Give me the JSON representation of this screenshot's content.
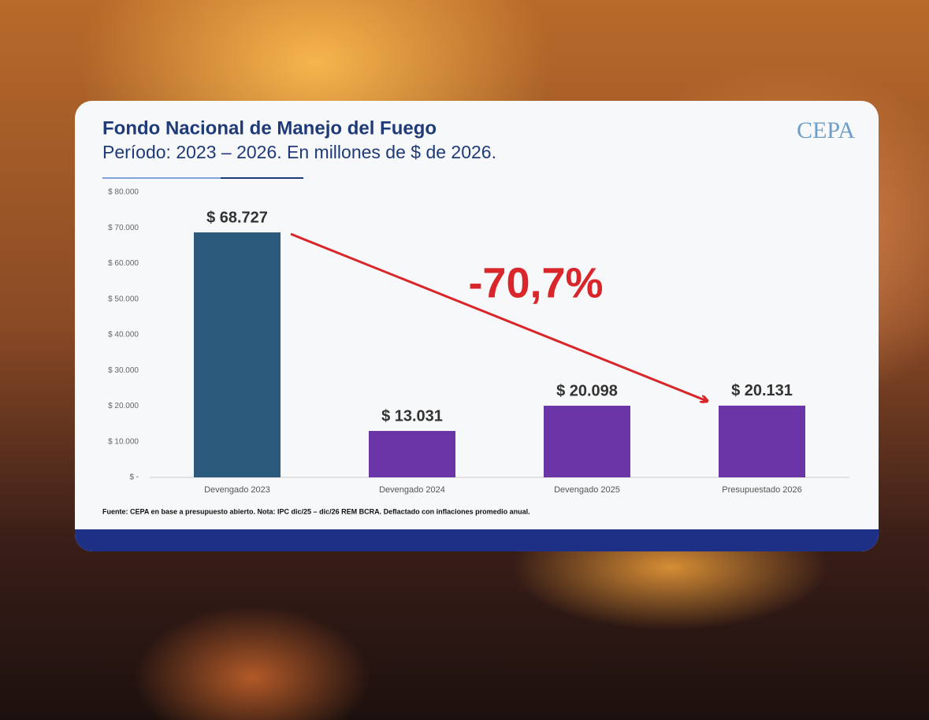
{
  "chart_data": {
    "type": "bar",
    "title": "Fondo Nacional de Manejo del Fuego",
    "subtitle": "Período: 2023 – 2026. En millones de $ de 2026.",
    "logo": "CEPA",
    "categories": [
      "Devengado 2023",
      "Devengado 2024",
      "Devengado 2025",
      "Presupuestado 2026"
    ],
    "values": [
      68727,
      13031,
      20098,
      20131
    ],
    "value_labels": [
      "$ 68.727",
      "$ 13.031",
      "$ 20.098",
      "$ 20.131"
    ],
    "colors": [
      "#2c5a7d",
      "#6a35a6",
      "#6a35a6",
      "#6a35a6"
    ],
    "ylim": [
      0,
      80000
    ],
    "yticks": [
      {
        "value": 0,
        "label": "$ -"
      },
      {
        "value": 10000,
        "label": "$ 10.000"
      },
      {
        "value": 20000,
        "label": "$ 20.000"
      },
      {
        "value": 30000,
        "label": "$ 30.000"
      },
      {
        "value": 40000,
        "label": "$ 40.000"
      },
      {
        "value": 50000,
        "label": "$ 50.000"
      },
      {
        "value": 60000,
        "label": "$ 60.000"
      },
      {
        "value": 70000,
        "label": "$ 70.000"
      },
      {
        "value": 80000,
        "label": "$ 80.000"
      }
    ],
    "grid": false,
    "annotation": "-70,7%",
    "annotation_color": "#d8262a",
    "source": "Fuente: CEPA en base a presupuesto abierto. Nota: IPC dic/25 – dic/26 REM BCRA. Deflactado con inflaciones promedio anual."
  }
}
